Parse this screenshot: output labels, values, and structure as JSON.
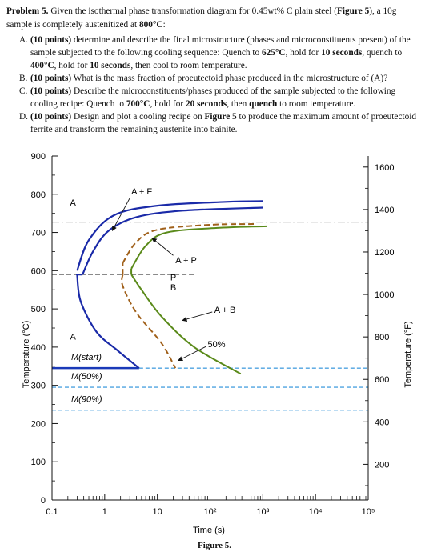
{
  "problem": {
    "heading_label": "Problem 5.",
    "heading_text_1": " Given the isothermal phase transformation diagram for 0.45wt% C plain steel (",
    "heading_figref": "Figure 5",
    "heading_text_2": "), a 10g sample is completely austenitized at ",
    "heading_temp": "800°C",
    "heading_end": ":",
    "items": [
      {
        "label": "A.",
        "points": "(10 points)",
        "t1": " determine and describe the final microstructure (phases and microconstituents present) of the sample subjected to the following cooling sequence: Quench to ",
        "b1": "625°C",
        "t2": ", hold for ",
        "b2": "10 seconds",
        "t3": ", quench to ",
        "b3": "400°C",
        "t4": ", hold for ",
        "b4": "10 seconds",
        "t5": ", then cool to room temperature."
      },
      {
        "label": "B.",
        "points": "(10 points)",
        "t1": " What is the mass fraction of proeutectoid phase produced in the microstructure of (A)?"
      },
      {
        "label": "C.",
        "points": "(10 points)",
        "t1": " Describe the microconstituents/phases produced of the sample subjected to the following cooling recipe: Quench to ",
        "b1": "700°C",
        "t2": ", hold for ",
        "b2": "20 seconds",
        "t3": ", then ",
        "b3": "quench",
        "t4": " to room temperature."
      },
      {
        "label": "D.",
        "points": "(10 points)",
        "t1": " Design and plot a cooling recipe on ",
        "b1": "Figure 5",
        "t2": " to produce the maximum amount of proeutectoid ferrite and transform the remaining austenite into bainite."
      }
    ]
  },
  "chart_data": {
    "type": "line",
    "x_scale": "log",
    "xlabel": "Time (s)",
    "ylabel": "Temperature (°C)",
    "y2label": "Temperature (°F)",
    "xlim": [
      0.1,
      100000
    ],
    "ylim": [
      0,
      900
    ],
    "x_ticks": [
      "0.1",
      "1",
      "10",
      "10²",
      "10³",
      "10⁴",
      "10⁵"
    ],
    "y_ticks": [
      "0",
      "100",
      "200",
      "300",
      "400",
      "500",
      "600",
      "700",
      "800",
      "900"
    ],
    "y2_ticks": [
      "200",
      "400",
      "600",
      "800",
      "1000",
      "1200",
      "1400",
      "1600"
    ],
    "eutectoid_temp": 727,
    "a3_temp": 780,
    "region_labels": [
      "A",
      "A + F",
      "A + P",
      "P",
      "B",
      "A + B",
      "A",
      "50%"
    ],
    "martensite_lines": [
      {
        "label": "M(start)",
        "temp": 345
      },
      {
        "label": "M(50%)",
        "temp": 295
      },
      {
        "label": "M(90%)",
        "temp": 235
      }
    ],
    "series": [
      {
        "style": "solid-blue",
        "points": [
          [
            0.38,
            590
          ],
          [
            0.6,
            650
          ],
          [
            1.2,
            705
          ],
          [
            4,
            740
          ],
          [
            30,
            757
          ],
          [
            1000,
            765
          ]
        ]
      },
      {
        "style": "solid-blue",
        "points": [
          [
            0.3,
            590
          ],
          [
            0.35,
            520
          ],
          [
            0.7,
            440
          ],
          [
            1.8,
            390
          ],
          [
            4.5,
            345
          ]
        ]
      },
      {
        "style": "dashed-brown",
        "points": [
          [
            2.2,
            620
          ],
          [
            4,
            675
          ],
          [
            10,
            707
          ],
          [
            100,
            720
          ],
          [
            700,
            722
          ]
        ]
      },
      {
        "style": "dashed-brown",
        "points": [
          [
            2.2,
            590
          ],
          [
            2.2,
            560
          ],
          [
            4,
            490
          ],
          [
            12,
            410
          ],
          [
            22,
            345
          ]
        ]
      },
      {
        "style": "solid-olive",
        "points": [
          [
            3.2,
            605
          ],
          [
            6,
            665
          ],
          [
            15,
            700
          ],
          [
            150,
            712
          ],
          [
            1200,
            716
          ]
        ]
      },
      {
        "style": "solid-olive",
        "points": [
          [
            3.2,
            590
          ],
          [
            5,
            550
          ],
          [
            12,
            480
          ],
          [
            50,
            400
          ],
          [
            380,
            330
          ]
        ]
      }
    ]
  },
  "figure_caption": "Figure 5."
}
